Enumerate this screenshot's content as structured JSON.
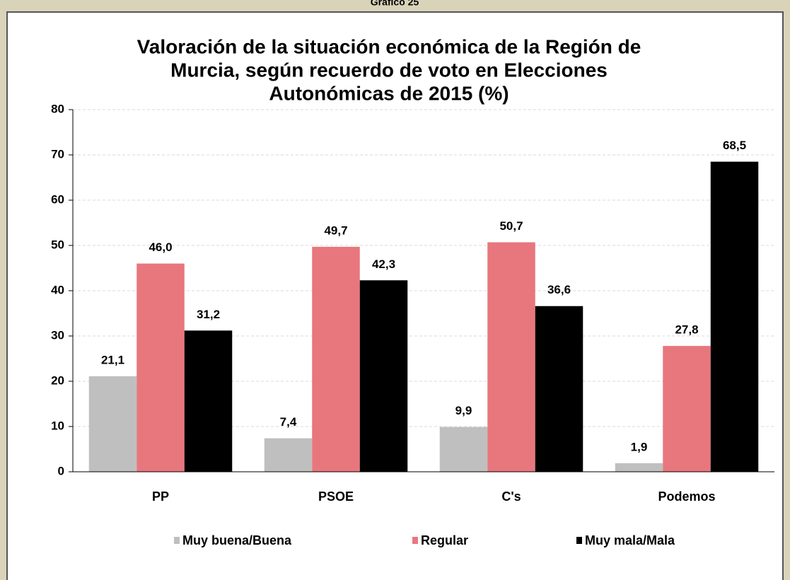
{
  "header": "Gráfico 25",
  "chart_data": {
    "type": "bar",
    "title": [
      "Valoración de la situación económica de la Región de",
      "Murcia, según recuerdo de voto en Elecciones",
      "Autonómicas de 2015 (%)"
    ],
    "categories": [
      "PP",
      "PSOE",
      "C's",
      "Podemos"
    ],
    "series": [
      {
        "name": "Muy buena/Buena",
        "color": "#bfbfbf",
        "values": [
          21.1,
          7.4,
          9.9,
          1.9
        ],
        "value_labels": [
          "21,1",
          "7,4",
          "9,9",
          "1,9"
        ]
      },
      {
        "name": "Regular",
        "color": "#e8777d",
        "values": [
          46.0,
          49.7,
          50.7,
          27.8
        ],
        "value_labels": [
          "46,0",
          "49,7",
          "50,7",
          "27,8"
        ]
      },
      {
        "name": "Muy mala/Mala",
        "color": "#000000",
        "values": [
          31.2,
          42.3,
          36.6,
          68.5
        ],
        "value_labels": [
          "31,2",
          "42,3",
          "36,6",
          "68,5"
        ]
      }
    ],
    "ylim": [
      0,
      80
    ],
    "yticks": [
      0,
      10,
      20,
      30,
      40,
      50,
      60,
      70,
      80
    ],
    "grid": true,
    "legend": "bottom"
  }
}
